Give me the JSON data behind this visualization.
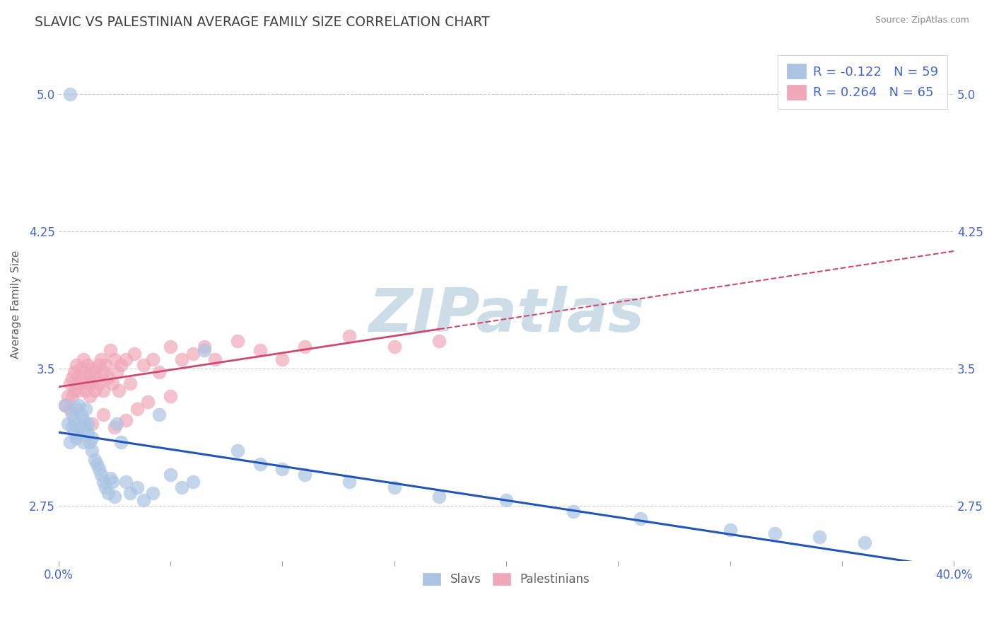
{
  "title": "SLAVIC VS PALESTINIAN AVERAGE FAMILY SIZE CORRELATION CHART",
  "source": "Source: ZipAtlas.com",
  "ylabel": "Average Family Size",
  "xlim": [
    0.0,
    0.4
  ],
  "ylim": [
    2.45,
    5.25
  ],
  "yticks": [
    2.75,
    3.5,
    4.25,
    5.0
  ],
  "xticks": [
    0.0,
    0.05,
    0.1,
    0.15,
    0.2,
    0.25,
    0.3,
    0.35,
    0.4
  ],
  "xticklabels_show": [
    "0.0%",
    "40.0%"
  ],
  "slavs_R": -0.122,
  "slavs_N": 59,
  "palest_R": 0.264,
  "palest_N": 65,
  "slav_color": "#aac4e2",
  "palest_color": "#f0a8b8",
  "slav_line_color": "#2255bb",
  "palest_line_color": "#d04870",
  "palest_line_dashed_color": "#d04870",
  "watermark_text": "ZIPatlas",
  "watermark_color": "#ccdde8",
  "background_color": "#ffffff",
  "grid_color": "#cccccc",
  "title_color": "#404040",
  "axis_label_color": "#606060",
  "tick_label_color": "#4466cc",
  "legend_text_color": "#4466cc",
  "slav_scatter_x": [
    0.003,
    0.004,
    0.005,
    0.006,
    0.006,
    0.007,
    0.007,
    0.008,
    0.008,
    0.009,
    0.009,
    0.01,
    0.01,
    0.011,
    0.011,
    0.012,
    0.012,
    0.013,
    0.013,
    0.014,
    0.015,
    0.015,
    0.016,
    0.017,
    0.018,
    0.019,
    0.02,
    0.021,
    0.022,
    0.023,
    0.024,
    0.025,
    0.026,
    0.028,
    0.03,
    0.032,
    0.035,
    0.038,
    0.042,
    0.045,
    0.05,
    0.055,
    0.06,
    0.065,
    0.08,
    0.09,
    0.1,
    0.11,
    0.13,
    0.15,
    0.17,
    0.2,
    0.23,
    0.26,
    0.3,
    0.32,
    0.34,
    0.36,
    0.005
  ],
  "slav_scatter_y": [
    3.3,
    3.2,
    3.1,
    3.18,
    3.25,
    3.22,
    3.15,
    3.28,
    3.12,
    3.3,
    3.18,
    3.25,
    3.15,
    3.22,
    3.1,
    3.18,
    3.28,
    3.15,
    3.2,
    3.1,
    3.05,
    3.12,
    3.0,
    2.98,
    2.95,
    2.92,
    2.88,
    2.85,
    2.82,
    2.9,
    2.88,
    2.8,
    3.2,
    3.1,
    2.88,
    2.82,
    2.85,
    2.78,
    2.82,
    3.25,
    2.92,
    2.85,
    2.88,
    3.6,
    3.05,
    2.98,
    2.95,
    2.92,
    2.88,
    2.85,
    2.8,
    2.78,
    2.72,
    2.68,
    2.62,
    2.6,
    2.58,
    2.55,
    5.0
  ],
  "palest_scatter_x": [
    0.003,
    0.004,
    0.005,
    0.005,
    0.006,
    0.006,
    0.007,
    0.007,
    0.008,
    0.008,
    0.009,
    0.009,
    0.01,
    0.01,
    0.011,
    0.011,
    0.012,
    0.012,
    0.013,
    0.013,
    0.014,
    0.014,
    0.015,
    0.015,
    0.016,
    0.016,
    0.017,
    0.018,
    0.018,
    0.019,
    0.02,
    0.02,
    0.021,
    0.022,
    0.023,
    0.024,
    0.025,
    0.026,
    0.027,
    0.028,
    0.03,
    0.032,
    0.034,
    0.038,
    0.042,
    0.045,
    0.05,
    0.055,
    0.06,
    0.065,
    0.07,
    0.08,
    0.09,
    0.1,
    0.11,
    0.13,
    0.15,
    0.17,
    0.015,
    0.02,
    0.025,
    0.03,
    0.035,
    0.04,
    0.05
  ],
  "palest_scatter_y": [
    3.3,
    3.35,
    3.28,
    3.42,
    3.35,
    3.45,
    3.38,
    3.48,
    3.42,
    3.52,
    3.38,
    3.45,
    3.42,
    3.5,
    3.45,
    3.55,
    3.48,
    3.38,
    3.42,
    3.52,
    3.45,
    3.35,
    3.5,
    3.42,
    3.48,
    3.38,
    3.45,
    3.52,
    3.42,
    3.55,
    3.48,
    3.38,
    3.52,
    3.45,
    3.6,
    3.42,
    3.55,
    3.48,
    3.38,
    3.52,
    3.55,
    3.42,
    3.58,
    3.52,
    3.55,
    3.48,
    3.62,
    3.55,
    3.58,
    3.62,
    3.55,
    3.65,
    3.6,
    3.55,
    3.62,
    3.68,
    3.62,
    3.65,
    3.2,
    3.25,
    3.18,
    3.22,
    3.28,
    3.32,
    3.35
  ]
}
